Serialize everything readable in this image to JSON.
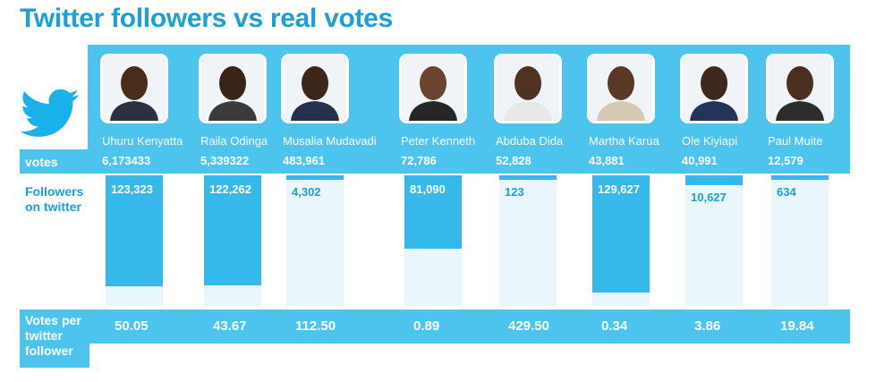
{
  "title": "Twitter followers vs real votes",
  "labels": {
    "votes": "votes",
    "followers": "Followers on twitter",
    "ratio": "Votes per twitter follower"
  },
  "colors": {
    "accent": "#1a9fd6",
    "band": "#4cc4ee",
    "bar": "#35b9ea",
    "bar_track": "#e9f7fd"
  },
  "icons": {
    "logo": "twitter-bird-icon"
  },
  "chart_data": {
    "type": "bar",
    "categories": [
      "Uhuru Kenyatta",
      "Raila Odinga",
      "Musalia Mudavadi",
      "Peter Kenneth",
      "Abduba Dida",
      "Martha Karua",
      "Ole Kiyiapi",
      "Paul Muite"
    ],
    "votes": [
      "6,173433",
      "5,339322",
      "483,961",
      "72,786",
      "52,828",
      "43,881",
      "40,991",
      "12,579"
    ],
    "followers": [
      123323,
      122262,
      4302,
      81090,
      123,
      129627,
      10627,
      634
    ],
    "followers_labels": [
      "123,323",
      "122,262",
      "4,302",
      "81,090",
      "123",
      "129,627",
      "10,627",
      "634"
    ],
    "votes_per_follower": [
      "50.05",
      "43.67",
      "112.50",
      "0.89",
      "429.50",
      "0.34",
      "3.86",
      "19.84"
    ],
    "ylim": [
      0,
      145000
    ]
  }
}
